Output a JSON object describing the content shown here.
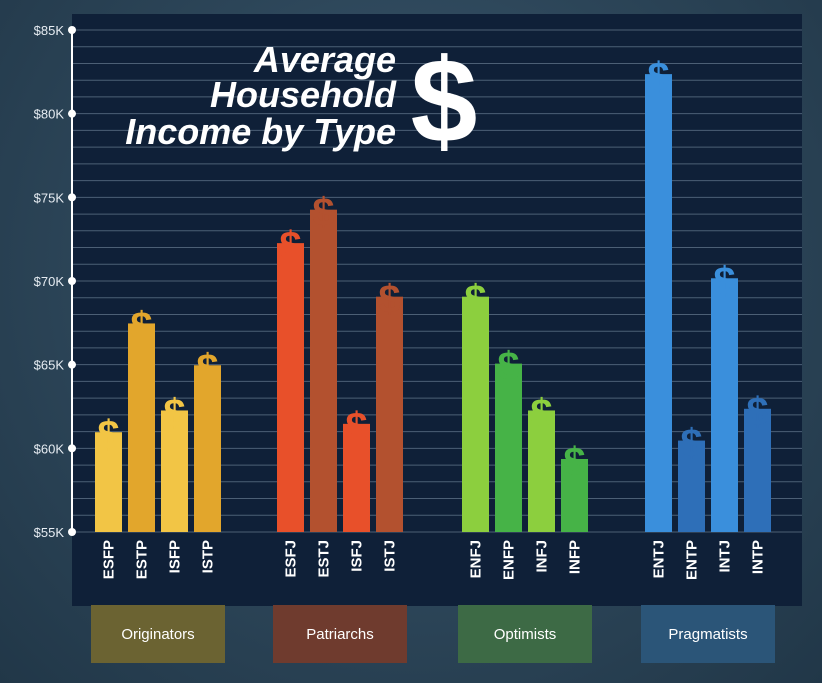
{
  "chart_data": {
    "type": "bar",
    "title": [
      "Average",
      "Household",
      "Income by Type"
    ],
    "title_symbol": "$",
    "bar_symbol": "$",
    "ylim": [
      55000,
      85000
    ],
    "yticks": [
      {
        "value": 85000,
        "label": "$85K"
      },
      {
        "value": 80000,
        "label": "$80K"
      },
      {
        "value": 75000,
        "label": "$75K"
      },
      {
        "value": 70000,
        "label": "$70K"
      },
      {
        "value": 65000,
        "label": "$65K"
      },
      {
        "value": 60000,
        "label": "$60K"
      },
      {
        "value": 55000,
        "label": "$55K"
      }
    ],
    "grid": true,
    "groups": [
      {
        "name": "Originators",
        "box_color": "#6b6332",
        "colors": [
          "#f2c545",
          "#e2a62c"
        ],
        "categories": [
          "ESFP",
          "ESTP",
          "ISFP",
          "ISTP"
        ],
        "values": [
          61800,
          68300,
          63100,
          65800
        ]
      },
      {
        "name": "Patriarchs",
        "box_color": "#6f3b2e",
        "colors": [
          "#e8502a",
          "#b3512f"
        ],
        "categories": [
          "ESFJ",
          "ESTJ",
          "ISFJ",
          "ISTJ"
        ],
        "values": [
          73100,
          75100,
          62300,
          69900
        ]
      },
      {
        "name": "Optimists",
        "box_color": "#3d6a45",
        "colors": [
          "#8ccf3e",
          "#46b347"
        ],
        "categories": [
          "ENFJ",
          "ENFP",
          "INFJ",
          "INFP"
        ],
        "values": [
          69900,
          65900,
          63100,
          60200
        ]
      },
      {
        "name": "Pragmatists",
        "box_color": "#2b5578",
        "colors": [
          "#3a8fdc",
          "#2e6fb8"
        ],
        "categories": [
          "ENTJ",
          "ENTP",
          "INTJ",
          "INTP"
        ],
        "values": [
          83200,
          61300,
          71000,
          63200
        ]
      }
    ]
  }
}
